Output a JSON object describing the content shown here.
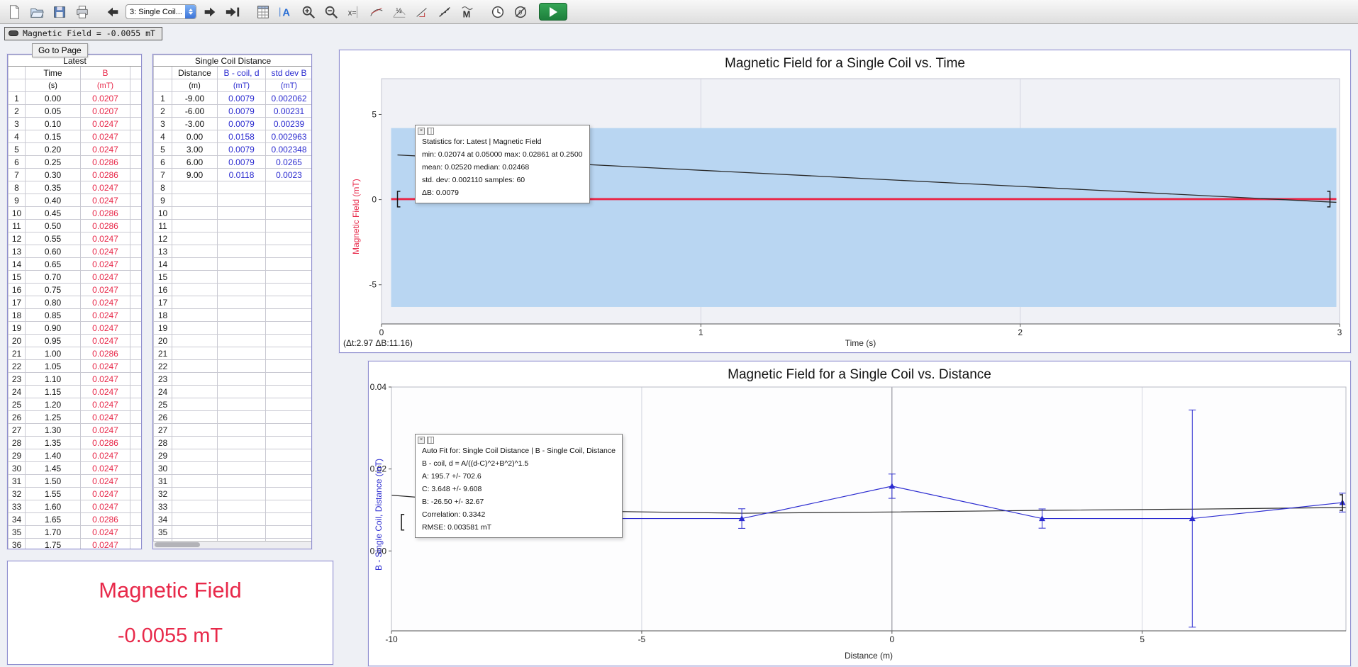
{
  "toolbar": {
    "page_selector_value": "3: Single Coil...",
    "glyphs": {
      "annotation": "A",
      "examine": "x=",
      "half": "½",
      "curve_fit": "M",
      "zero": "0"
    }
  },
  "readout": {
    "text": "Magnetic Field = -0.0055 mT"
  },
  "go_to_page_label": "Go to Page",
  "latest_table": {
    "title": "Latest",
    "filler": true,
    "total_rows": 36,
    "cols": [
      {
        "name": "Time",
        "unit": "(s)",
        "color": "#111111",
        "value_color": "#111111"
      },
      {
        "name": "B",
        "unit": "(mT)",
        "color": "#e8294a",
        "value_color": "#e8294a"
      }
    ],
    "rows": [
      [
        "0.00",
        "0.0207"
      ],
      [
        "0.05",
        "0.0207"
      ],
      [
        "0.10",
        "0.0247"
      ],
      [
        "0.15",
        "0.0247"
      ],
      [
        "0.20",
        "0.0247"
      ],
      [
        "0.25",
        "0.0286"
      ],
      [
        "0.30",
        "0.0286"
      ],
      [
        "0.35",
        "0.0247"
      ],
      [
        "0.40",
        "0.0247"
      ],
      [
        "0.45",
        "0.0286"
      ],
      [
        "0.50",
        "0.0286"
      ],
      [
        "0.55",
        "0.0247"
      ],
      [
        "0.60",
        "0.0247"
      ],
      [
        "0.65",
        "0.0247"
      ],
      [
        "0.70",
        "0.0247"
      ],
      [
        "0.75",
        "0.0247"
      ],
      [
        "0.80",
        "0.0247"
      ],
      [
        "0.85",
        "0.0247"
      ],
      [
        "0.90",
        "0.0247"
      ],
      [
        "0.95",
        "0.0247"
      ],
      [
        "1.00",
        "0.0286"
      ],
      [
        "1.05",
        "0.0247"
      ],
      [
        "1.10",
        "0.0247"
      ],
      [
        "1.15",
        "0.0247"
      ],
      [
        "1.20",
        "0.0247"
      ],
      [
        "1.25",
        "0.0247"
      ],
      [
        "1.30",
        "0.0247"
      ],
      [
        "1.35",
        "0.0286"
      ],
      [
        "1.40",
        "0.0247"
      ],
      [
        "1.45",
        "0.0247"
      ],
      [
        "1.50",
        "0.0247"
      ],
      [
        "1.55",
        "0.0247"
      ],
      [
        "1.60",
        "0.0247"
      ],
      [
        "1.65",
        "0.0286"
      ],
      [
        "1.70",
        "0.0247"
      ],
      [
        "1.75",
        "0.0247"
      ]
    ]
  },
  "distance_table": {
    "title": "Single Coil Distance",
    "filler": false,
    "total_rows": 36,
    "cols": [
      {
        "name": "Distance",
        "unit": "(m)",
        "color": "#111111",
        "value_color": "#111111"
      },
      {
        "name": "B - coil, d",
        "unit": "(mT)",
        "color": "#2b2bd0",
        "value_color": "#2b2bd0"
      },
      {
        "name": "std dev B",
        "unit": "(mT)",
        "color": "#2b2bd0",
        "value_color": "#2b2bd0"
      }
    ],
    "rows": [
      [
        "-9.00",
        "0.0079",
        "0.002062"
      ],
      [
        "-6.00",
        "0.0079",
        "0.00231"
      ],
      [
        "-3.00",
        "0.0079",
        "0.00239"
      ],
      [
        "0.00",
        "0.0158",
        "0.002963"
      ],
      [
        "3.00",
        "0.0079",
        "0.002348"
      ],
      [
        "6.00",
        "0.0079",
        "0.0265"
      ],
      [
        "9.00",
        "0.0118",
        "0.0023"
      ]
    ]
  },
  "meter": {
    "name": "Magnetic Field",
    "value": "-0.0055 mT"
  },
  "chart_data": [
    {
      "type": "line",
      "title": "Magnetic Field for a Single Coil vs. Time",
      "xlabel": "Time (s)",
      "ylabel": "Magnetic Field (mT)",
      "ylabel_color": "#e8294a",
      "range_label": "(Δt:2.97 ΔB:11.16)",
      "xlim": [
        0,
        3
      ],
      "ylim": [
        -7.3,
        7.1
      ],
      "xticks": [
        {
          "v": 0,
          "label": "0"
        },
        {
          "v": 1,
          "label": "1"
        },
        {
          "v": 2,
          "label": "2"
        },
        {
          "v": 3,
          "label": "3"
        }
      ],
      "yticks": [
        {
          "v": -5,
          "label": "-5"
        },
        {
          "v": 0,
          "label": "0"
        },
        {
          "v": 5,
          "label": "5"
        }
      ],
      "grid_x": [
        {
          "v": 1
        },
        {
          "v": 2
        }
      ],
      "selection": {
        "x0": 0.03,
        "x1": 2.99,
        "y0": -6.3,
        "y1": 4.2,
        "color": "#b9d6f2"
      },
      "series": [
        {
          "name": "Latest | Magnetic Field",
          "color": "#e8294a",
          "width": 3,
          "points": [
            [
              0.03,
              0.03
            ],
            [
              2.99,
              0.03
            ]
          ]
        },
        {
          "name": "fit line",
          "color": "#2a2a2a",
          "width": 1.3,
          "points": [
            [
              0.05,
              2.62
            ],
            [
              2.99,
              -0.16
            ]
          ]
        }
      ],
      "brackets": [
        {
          "x": 0.05,
          "y": 0.03,
          "dir": "left"
        },
        {
          "x": 2.97,
          "y": 0.03,
          "dir": "right"
        }
      ],
      "overlay_box": {
        "name": "statistics-box",
        "lines": [
          "Statistics for: Latest | Magnetic Field",
          "min: 0.02074 at 0.05000 max: 0.02861 at 0.2500",
          "mean: 0.02520 median: 0.02468",
          "std. dev: 0.002110 samples: 60",
          "ΔB: 0.0079"
        ]
      }
    },
    {
      "type": "scatter",
      "title": "Magnetic Field for a Single Coil vs. Distance",
      "xlabel": "Distance (m)",
      "ylabel": "B - Single Coil, Distance (mT)",
      "ylabel_color": "#2b2bd0",
      "xlim": [
        -10,
        9.07
      ],
      "ylim": [
        -0.0195,
        0.04
      ],
      "xticks": [
        {
          "v": -10,
          "label": "-10"
        },
        {
          "v": -5,
          "label": "-5"
        },
        {
          "v": 0,
          "label": "0"
        },
        {
          "v": 5,
          "label": "5"
        }
      ],
      "yticks": [
        {
          "v": 0,
          "label": "0.00"
        },
        {
          "v": 0.02,
          "label": "0.02"
        },
        {
          "v": 0.04,
          "label": "0.04"
        }
      ],
      "grid_x": [
        {
          "v": -5
        },
        {
          "v": 5
        },
        {
          "v": 0,
          "strong": true
        }
      ],
      "series": [
        {
          "name": "auto fit",
          "color": "#2a2a2a",
          "width": 1.2,
          "points": [
            [
              -10,
              0.0136
            ],
            [
              -6,
              0.0097
            ],
            [
              -3,
              0.0092
            ],
            [
              0,
              0.0095
            ],
            [
              3,
              0.0099
            ],
            [
              6,
              0.0102
            ],
            [
              9.07,
              0.0106
            ]
          ]
        },
        {
          "name": "B - Single Coil, Distance",
          "color": "#2b2bd0",
          "width": 1.2,
          "marker": "triangle",
          "x": [
            -9,
            -6,
            -3,
            0,
            3,
            6,
            9
          ],
          "y": [
            0.0079,
            0.0079,
            0.0079,
            0.0158,
            0.0079,
            0.0079,
            0.0118
          ],
          "yerr": [
            0.002062,
            0.00231,
            0.00239,
            0.002963,
            0.002348,
            0.0265,
            0.0023
          ]
        }
      ],
      "brackets": [
        {
          "x": -9.8,
          "y": 0.007,
          "dir": "left"
        },
        {
          "x": 9.0,
          "y": 0.0118,
          "dir": "right"
        }
      ],
      "overlay_box": {
        "name": "auto-fit-box",
        "lines": [
          "Auto Fit for: Single Coil Distance | B - Single Coil, Distance",
          "B - coil, d = A/((d-C)^2+B^2)^1.5",
          "A: 195.7 +/- 702.6",
          "C: 3.648 +/- 9.608",
          "B: -26.50 +/- 32.67",
          "Correlation: 0.3342",
          "RMSE: 0.003581 mT"
        ]
      }
    }
  ]
}
